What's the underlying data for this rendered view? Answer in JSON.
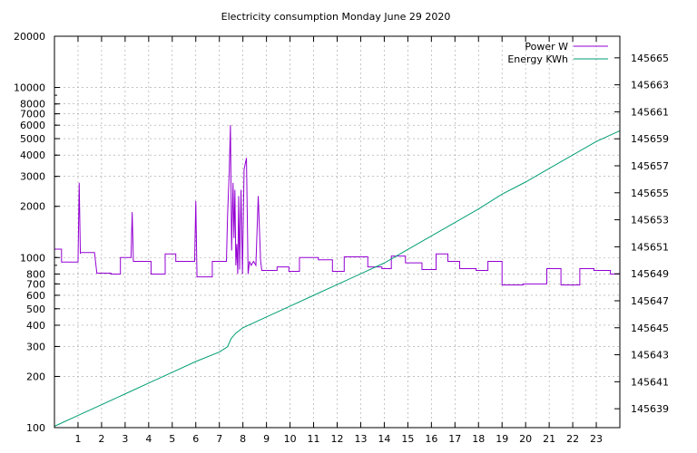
{
  "chart_data": {
    "type": "line",
    "title": "Electricity consumption Monday June 29 2020",
    "xlabel": "",
    "ylabel": "",
    "y2label": "",
    "xlim": [
      0,
      24
    ],
    "ylim": [
      100,
      20000
    ],
    "y_scale": "log",
    "y2lim": [
      145637.6,
      145666.6
    ],
    "y2_scale": "linear",
    "grid": true,
    "legend_position": "top-right",
    "x_ticks": [
      "1",
      "2",
      "3",
      "4",
      "5",
      "6",
      "7",
      "8",
      "9",
      "10",
      "11",
      "12",
      "13",
      "14",
      "15",
      "16",
      "17",
      "18",
      "19",
      "20",
      "21",
      "22",
      "23"
    ],
    "y_ticks": [
      "100",
      "200",
      "300",
      "400",
      "500",
      "600",
      "700",
      "800",
      "1000",
      "2000",
      "3000",
      "4000",
      "5000",
      "6000",
      "7000",
      "8000",
      "10000",
      "20000"
    ],
    "y2_ticks": [
      "145639",
      "145641",
      "145643",
      "145645",
      "145647",
      "145649",
      "145651",
      "145653",
      "145655",
      "145657",
      "145659",
      "145661",
      "145663",
      "145665"
    ],
    "series": [
      {
        "name": "Power W",
        "axis": "left",
        "color": "#9400d3",
        "x": [
          0,
          0.3,
          0.3,
          1.0,
          1.05,
          1.1,
          1.1,
          1.7,
          1.8,
          2.4,
          2.4,
          2.8,
          2.8,
          3.25,
          3.3,
          3.35,
          3.35,
          4.1,
          4.1,
          4.7,
          4.7,
          5.15,
          5.15,
          5.95,
          6.0,
          6.05,
          6.05,
          6.7,
          6.7,
          7.3,
          7.35,
          7.42,
          7.47,
          7.52,
          7.58,
          7.62,
          7.66,
          7.7,
          7.74,
          7.78,
          7.82,
          7.86,
          7.92,
          7.98,
          8.05,
          8.15,
          8.22,
          8.28,
          8.35,
          8.45,
          8.55,
          8.65,
          8.75,
          8.8,
          8.85,
          9.45,
          9.45,
          9.95,
          9.95,
          10.4,
          10.4,
          11.2,
          11.2,
          11.8,
          11.8,
          12.3,
          12.3,
          13.3,
          13.3,
          13.9,
          13.9,
          14.3,
          14.3,
          14.9,
          14.9,
          15.6,
          15.6,
          16.2,
          16.2,
          16.7,
          16.7,
          17.2,
          17.2,
          17.9,
          17.9,
          18.4,
          18.4,
          19.0,
          19.0,
          19.9,
          19.9,
          20.9,
          20.9,
          21.5,
          21.5,
          22.3,
          22.3,
          22.9,
          22.9,
          23.6,
          23.6,
          24.0
        ],
        "y": [
          1120,
          1120,
          940,
          940,
          2750,
          1050,
          1070,
          1070,
          810,
          810,
          800,
          800,
          1000,
          1000,
          1850,
          950,
          950,
          950,
          800,
          800,
          1050,
          1050,
          950,
          950,
          2150,
          790,
          770,
          770,
          950,
          950,
          1800,
          3200,
          6000,
          1100,
          2750,
          1300,
          2500,
          900,
          1200,
          800,
          2300,
          850,
          2500,
          800,
          3300,
          3850,
          800,
          950,
          900,
          950,
          900,
          2300,
          960,
          840,
          840,
          840,
          880,
          880,
          830,
          830,
          1000,
          1000,
          970,
          970,
          830,
          830,
          1010,
          1010,
          880,
          880,
          860,
          860,
          1020,
          1020,
          930,
          930,
          850,
          850,
          1050,
          1050,
          950,
          950,
          860,
          860,
          840,
          840,
          950,
          950,
          690,
          690,
          700,
          700,
          860,
          860,
          690,
          690,
          860,
          860,
          840,
          840,
          800,
          800
        ]
      },
      {
        "name": "Energy KWh",
        "axis": "right",
        "color": "#009e73",
        "x": [
          0,
          1.0,
          2.0,
          3.0,
          4.0,
          5.0,
          6.0,
          7.0,
          7.35,
          7.5,
          7.7,
          8.0,
          9.0,
          10.0,
          11.0,
          12.0,
          13.0,
          14.0,
          15.0,
          16.0,
          17.0,
          18.0,
          19.0,
          20.0,
          21.0,
          22.0,
          23.0,
          24.0
        ],
        "y": [
          145637.7,
          145638.5,
          145639.3,
          145640.1,
          145640.9,
          145641.7,
          145642.5,
          145643.2,
          145643.6,
          145644.2,
          145644.6,
          145645.0,
          145645.8,
          145646.6,
          145647.4,
          145648.2,
          145649.0,
          145649.8,
          145650.8,
          145651.8,
          145652.8,
          145653.8,
          145654.9,
          145655.8,
          145656.8,
          145657.8,
          145658.8,
          145659.6
        ]
      }
    ]
  }
}
